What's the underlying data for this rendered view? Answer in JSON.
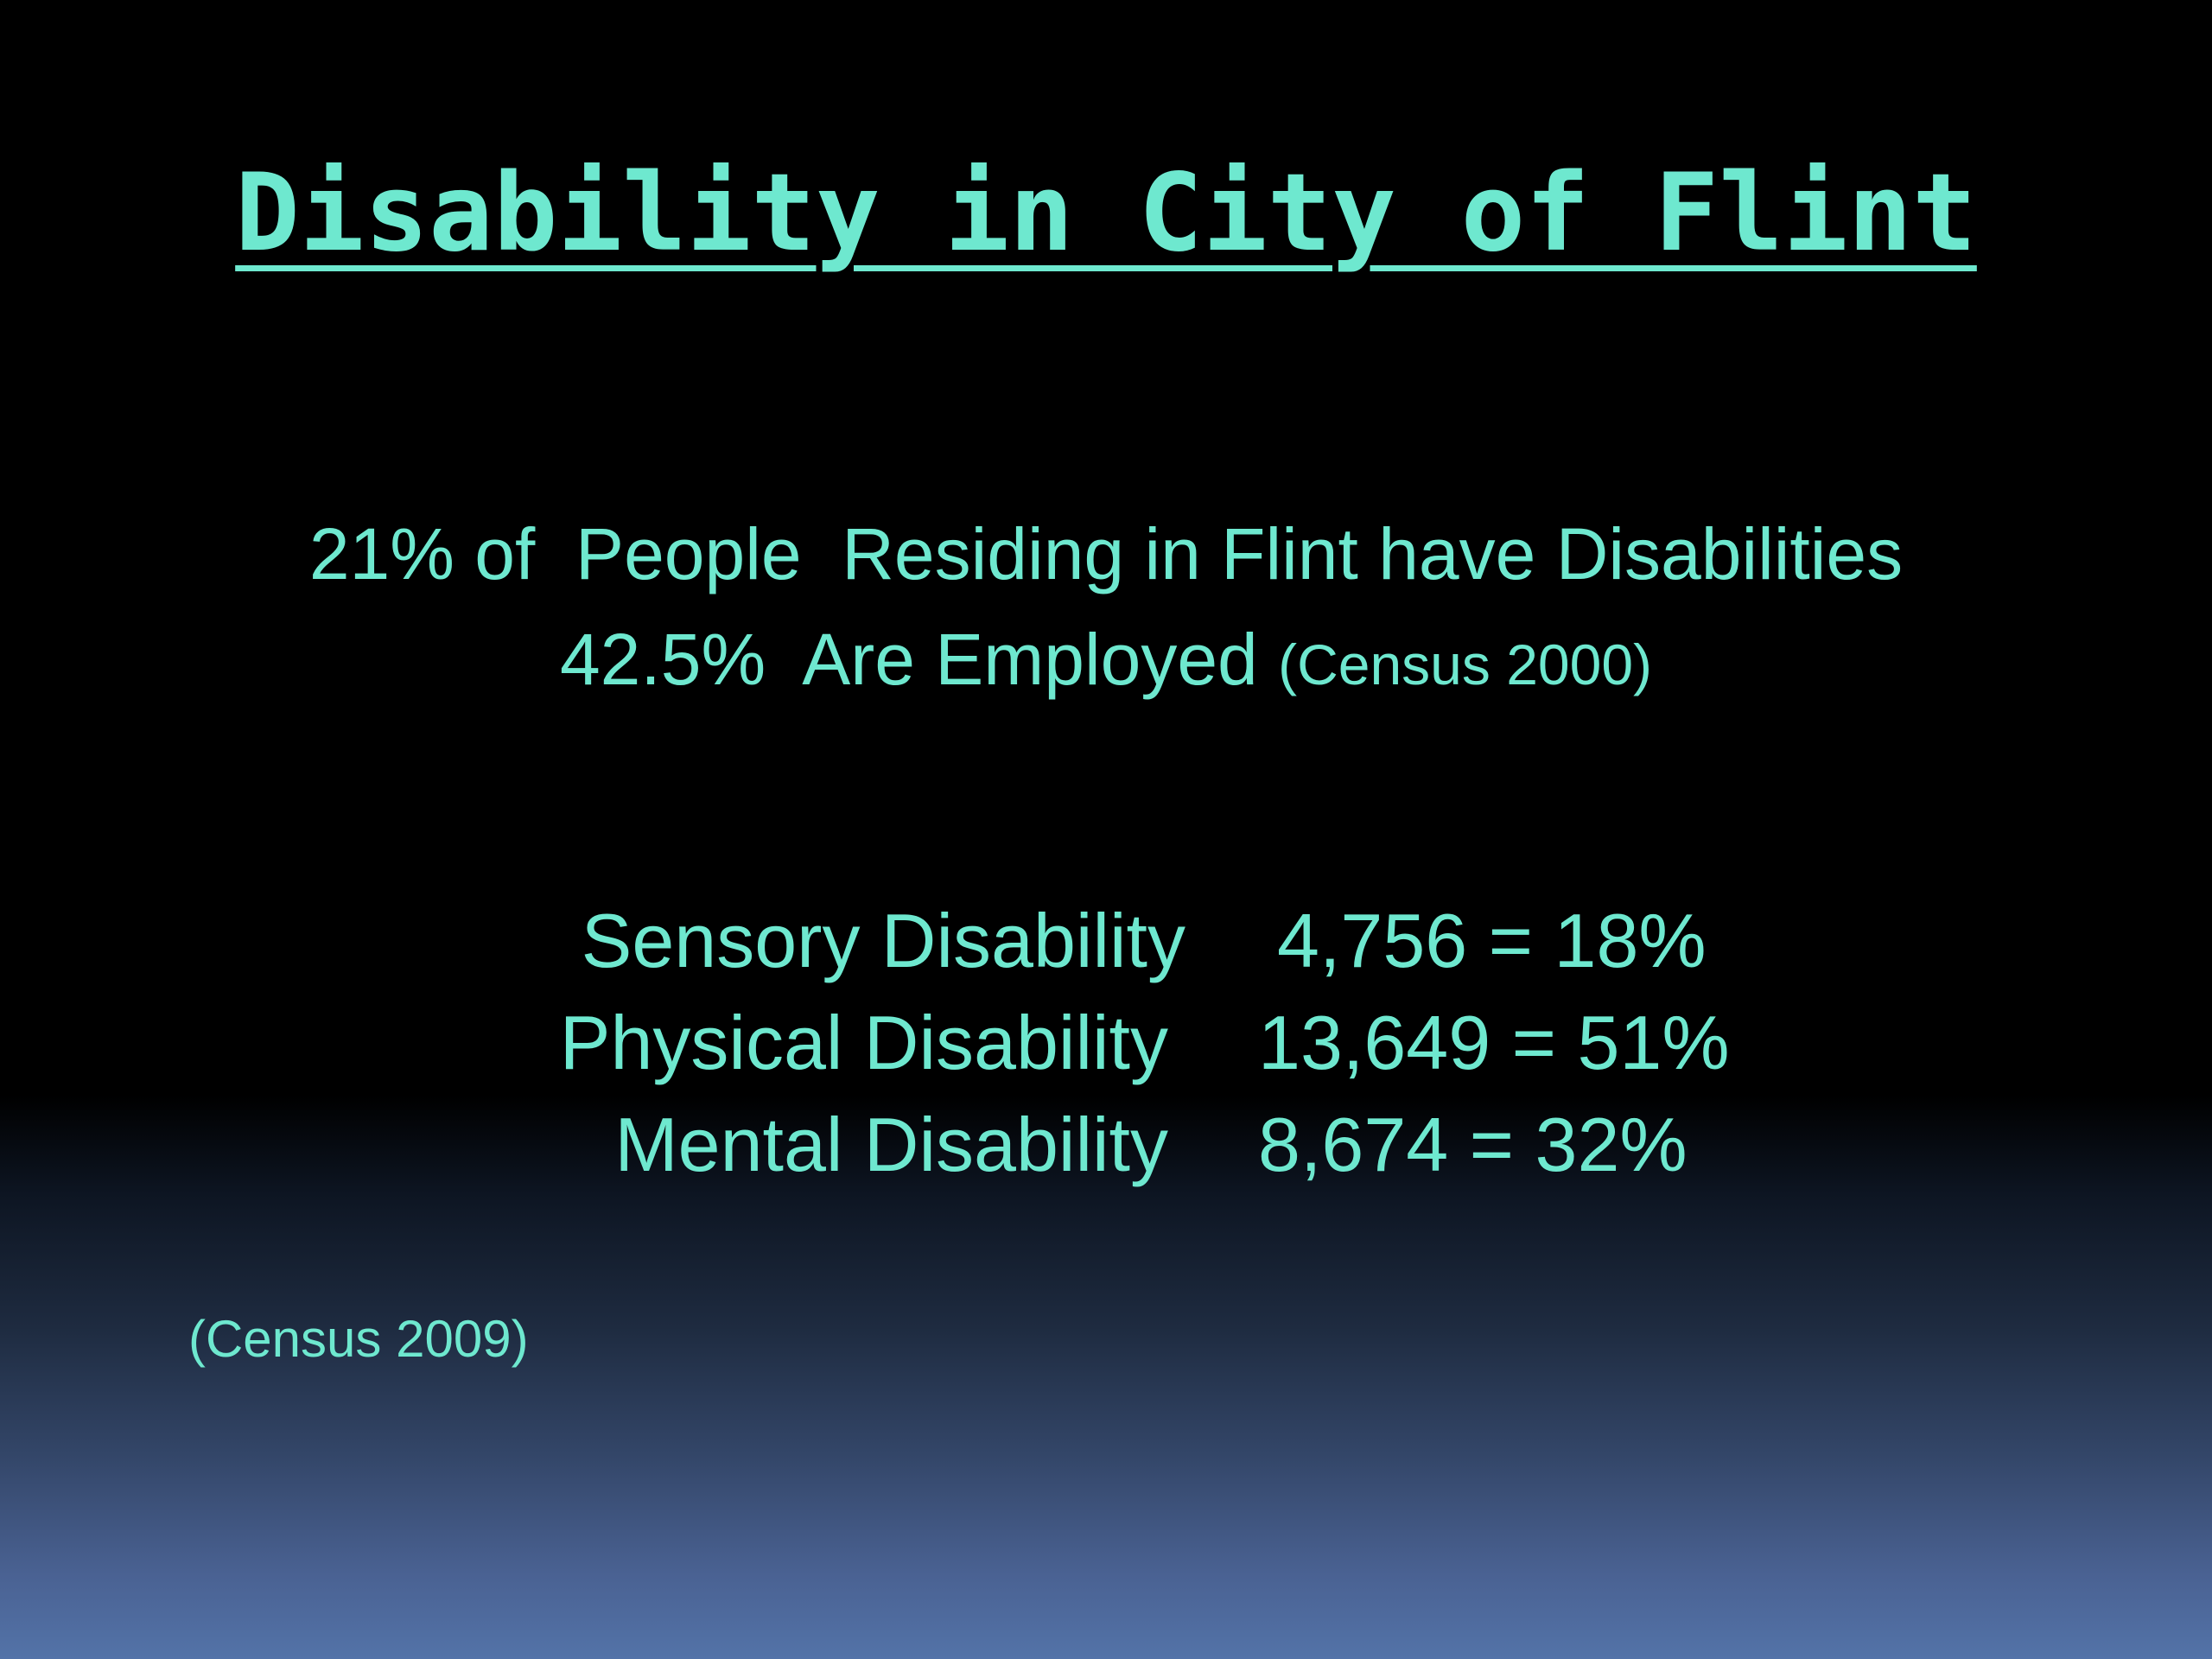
{
  "slide": {
    "title": "Disability in City of Flint",
    "stats": {
      "line1": "21% of  People  Residing in Flint have Disabilities",
      "line2_main": "42.5%  Are Employed ",
      "line2_source": "(Census 2000)"
    },
    "breakdown": [
      {
        "label": "Sensory Disability",
        "value": "4,756 = 18%"
      },
      {
        "label": "Physical Disability",
        "value": "13,649 = 51%"
      },
      {
        "label": "Mental Disability",
        "value": "8,674 = 32%"
      }
    ],
    "footnote": "(Census 2009)"
  },
  "colors": {
    "text": "#6ee8cf",
    "background_top": "#000000",
    "background_bottom": "#5373a8"
  }
}
